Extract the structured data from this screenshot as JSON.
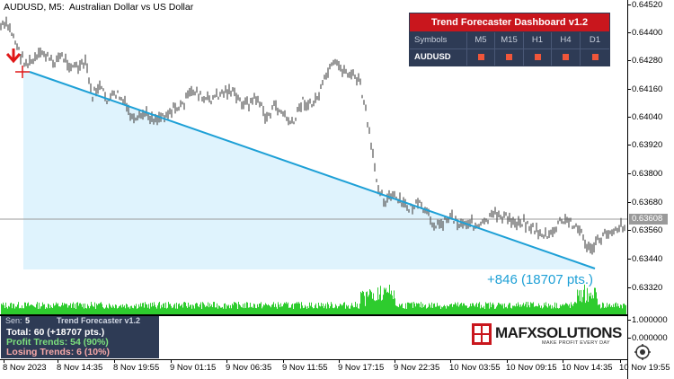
{
  "header": {
    "title": "AUDUSD, M5:  Australian Dollar vs US Dollar"
  },
  "price_axis": {
    "labels": [
      "0.64520",
      "0.64400",
      "0.64280",
      "0.64160",
      "0.64040",
      "0.63920",
      "0.63800",
      "0.63680",
      "0.63560",
      "0.63440",
      "0.63320"
    ],
    "current_price": "0.63608",
    "subwindow_labels": [
      "1.000000",
      "0.000000"
    ]
  },
  "time_axis": {
    "labels": [
      "8 Nov 2023",
      "8 Nov 14:35",
      "8 Nov 19:55",
      "9 Nov 01:15",
      "9 Nov 06:35",
      "9 Nov 11:55",
      "9 Nov 17:15",
      "9 Nov 22:35",
      "10 Nov 03:55",
      "10 Nov 09:15",
      "10 Nov 14:35",
      "10 Nov 19:55"
    ]
  },
  "trend": {
    "label": "+846 (18707 pts.)",
    "color": "#1ea0d6",
    "fill": "#dff3fd"
  },
  "dashboard": {
    "title": "Trend Forecaster Dashboard v1.2",
    "columns": [
      "Symbols",
      "M5",
      "M15",
      "H1",
      "H4",
      "D1"
    ],
    "rows": [
      {
        "symbol": "AUDUSD",
        "signals": [
          "down",
          "down",
          "down",
          "down",
          "down"
        ]
      }
    ],
    "signal_color": "#f0563a"
  },
  "stats": {
    "sen_label": "Sen:",
    "sen_value": "5",
    "indicator_name": "Trend Forecaster v1.2",
    "total": "Total: 60 (+18707 pts.)",
    "profit": "Profit Trends: 54 (90%)",
    "losing": "Losing Trends: 6 (10%)",
    "colors": {
      "total": "#ffffff",
      "profit": "#7de07d",
      "losing": "#f7a8a8"
    }
  },
  "logo": {
    "name": "MAFXSOLUTIONS",
    "tagline": "MAKE PROFIT EVERY DAY"
  },
  "icons": {
    "sell_arrow": "down-arrow-icon",
    "zoom": "zoom-icon"
  },
  "colors": {
    "candles": "#555555",
    "volume": "#2ecc2e",
    "grid": "#999999"
  }
}
